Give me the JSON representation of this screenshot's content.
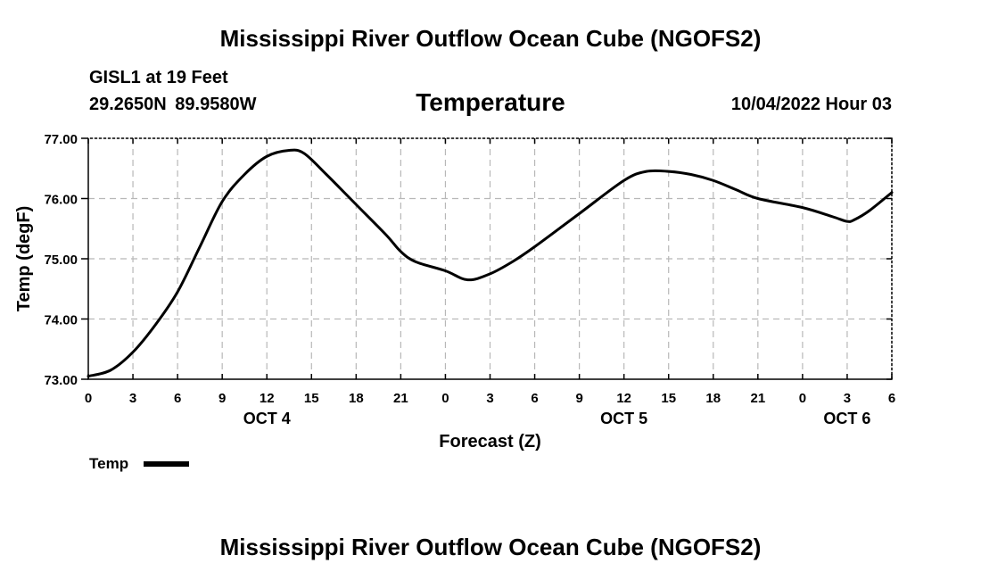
{
  "header": {
    "title": "Mississippi River Outflow Ocean Cube (NGOFS2)",
    "station": "GISL1 at 19 Feet",
    "coordinates": "29.2650N  89.9580W",
    "date": "10/04/2022 Hour 03"
  },
  "footer": {
    "title": "Mississippi River Outflow Ocean Cube (NGOFS2)"
  },
  "chart_data": {
    "type": "line",
    "title": "Temperature",
    "xlabel": "Forecast (Z)",
    "ylabel": "Temp (degF)",
    "xlim": [
      0,
      54
    ],
    "ylim": [
      73.0,
      77.0
    ],
    "x_tick_labels": [
      "0",
      "3",
      "6",
      "9",
      "12",
      "15",
      "18",
      "21",
      "0",
      "3",
      "6",
      "9",
      "12",
      "15",
      "18",
      "21",
      "0",
      "3",
      "6"
    ],
    "y_tick_values": [
      73.0,
      74.0,
      75.0,
      76.0,
      77.0
    ],
    "y_tick_labels": [
      "73.00",
      "74.00",
      "75.00",
      "76.00",
      "77.00"
    ],
    "date_labels": [
      {
        "label": "OCT 4",
        "hour": 12
      },
      {
        "label": "OCT 5",
        "hour": 36
      },
      {
        "label": "OCT 6",
        "hour": 51
      }
    ],
    "grid": true,
    "legend": "bottom-left",
    "series": [
      {
        "name": "Temp",
        "x": [
          0,
          1.5,
          3,
          4.5,
          6,
          7.5,
          9,
          10.5,
          12,
          13.5,
          14.5,
          16,
          18,
          20,
          21,
          22,
          24,
          25.5,
          27,
          28.5,
          30,
          33,
          36,
          37.5,
          39,
          40.5,
          42,
          43.5,
          45,
          48,
          50,
          51,
          51.5,
          52.5,
          54
        ],
        "y": [
          73.05,
          73.15,
          73.45,
          73.9,
          74.45,
          75.2,
          75.95,
          76.4,
          76.7,
          76.8,
          76.75,
          76.4,
          75.9,
          75.4,
          75.12,
          74.95,
          74.8,
          74.65,
          74.75,
          74.95,
          75.2,
          75.75,
          76.3,
          76.45,
          76.45,
          76.4,
          76.3,
          76.15,
          76.0,
          75.85,
          75.7,
          75.62,
          75.65,
          75.8,
          76.1
        ]
      }
    ]
  }
}
